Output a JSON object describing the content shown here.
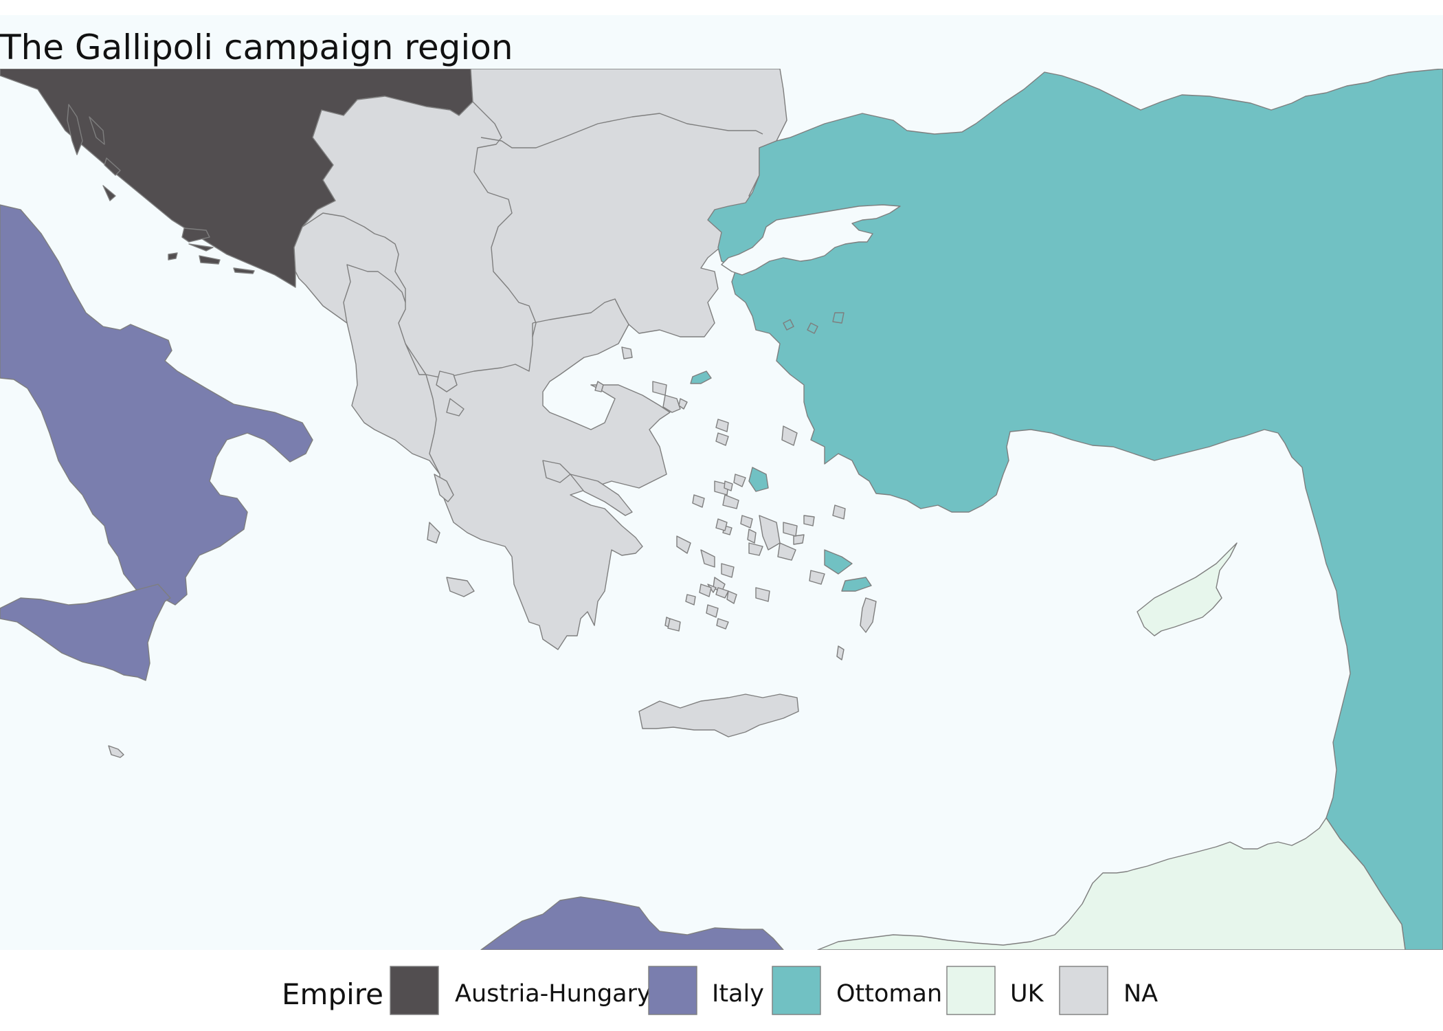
{
  "title": "The Gallipoli campaign region",
  "legend": {
    "title": "Empire",
    "items": [
      {
        "label": "Austria-Hungary",
        "color": "#524e50"
      },
      {
        "label": "Italy",
        "color": "#7a7eae"
      },
      {
        "label": "Ottoman",
        "color": "#71c1c3"
      },
      {
        "label": "UK",
        "color": "#e7f6ec"
      },
      {
        "label": "NA",
        "color": "#d8dadd"
      }
    ]
  },
  "colors": {
    "sea": "#f5fbfd",
    "page": "#ffffff",
    "border": "#7e7e7e"
  }
}
